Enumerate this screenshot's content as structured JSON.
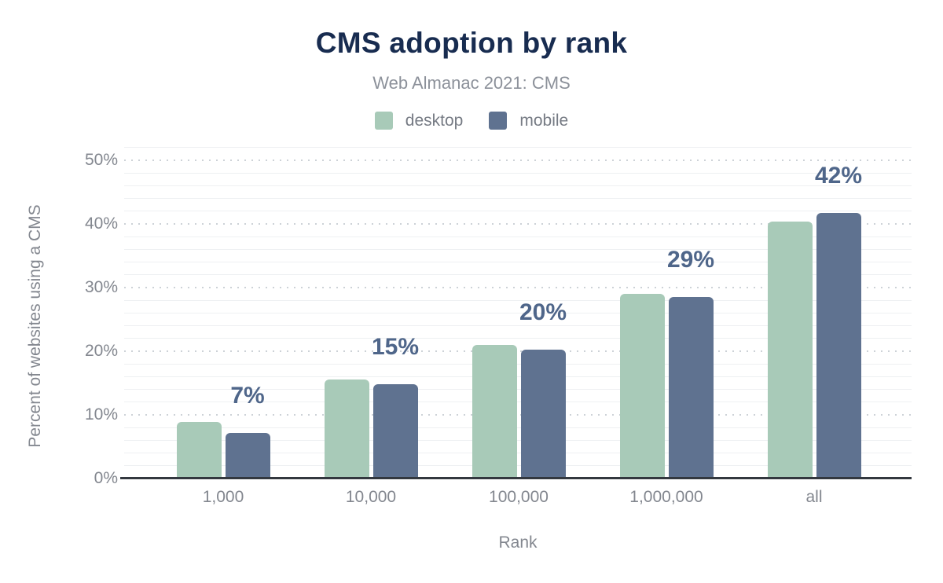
{
  "chart_data": {
    "type": "bar",
    "title": "CMS adoption by rank",
    "subtitle": "Web Almanac 2021: CMS",
    "xlabel": "Rank",
    "ylabel": "Percent of websites using a CMS",
    "categories": [
      "1,000",
      "10,000",
      "100,000",
      "1,000,000",
      "all"
    ],
    "series": [
      {
        "name": "desktop",
        "color": "#a8cab8",
        "values": [
          8.9,
          15.6,
          21.0,
          29.0,
          40.4
        ]
      },
      {
        "name": "mobile",
        "color": "#5f7290",
        "values": [
          7.2,
          14.8,
          20.3,
          28.5,
          41.7
        ]
      }
    ],
    "value_labels": {
      "series": "mobile",
      "texts": [
        "7%",
        "15%",
        "20%",
        "29%",
        "42%"
      ]
    },
    "ylim": [
      0,
      52
    ],
    "yticks": [
      0,
      10,
      20,
      30,
      40,
      50
    ],
    "ytick_suffix": "%",
    "minor_grid_step": 2,
    "grid": "major-dotted, minor-solid",
    "legend_position": "top"
  },
  "legend": {
    "items": [
      {
        "label": "desktop",
        "color": "#a8cab8"
      },
      {
        "label": "mobile",
        "color": "#5f7290"
      }
    ]
  },
  "colors": {
    "background": "#ffffff",
    "title": "#182c50",
    "subtitle": "#8c919a",
    "axis_text": "#83878f",
    "legend_text": "#767b84",
    "value_label": "#4f668a",
    "axis_line": "#33383f",
    "grid_major": "#cdd2d7",
    "grid_minor": "#eef0f2"
  }
}
